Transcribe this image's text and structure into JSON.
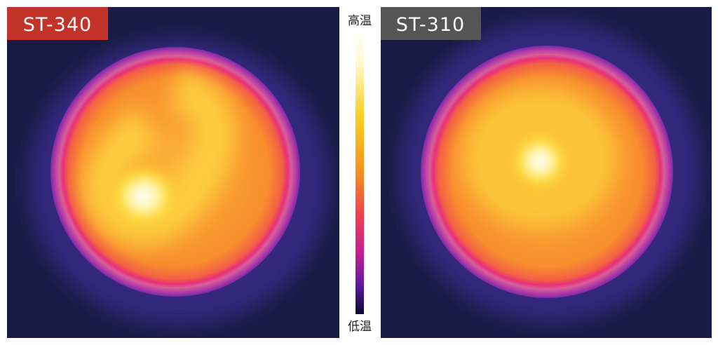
{
  "left_panel": {
    "label": "ST-340"
  },
  "right_panel": {
    "label": "ST-310"
  },
  "color_scale": {
    "top_label": "高温",
    "bottom_label": "低温"
  }
}
